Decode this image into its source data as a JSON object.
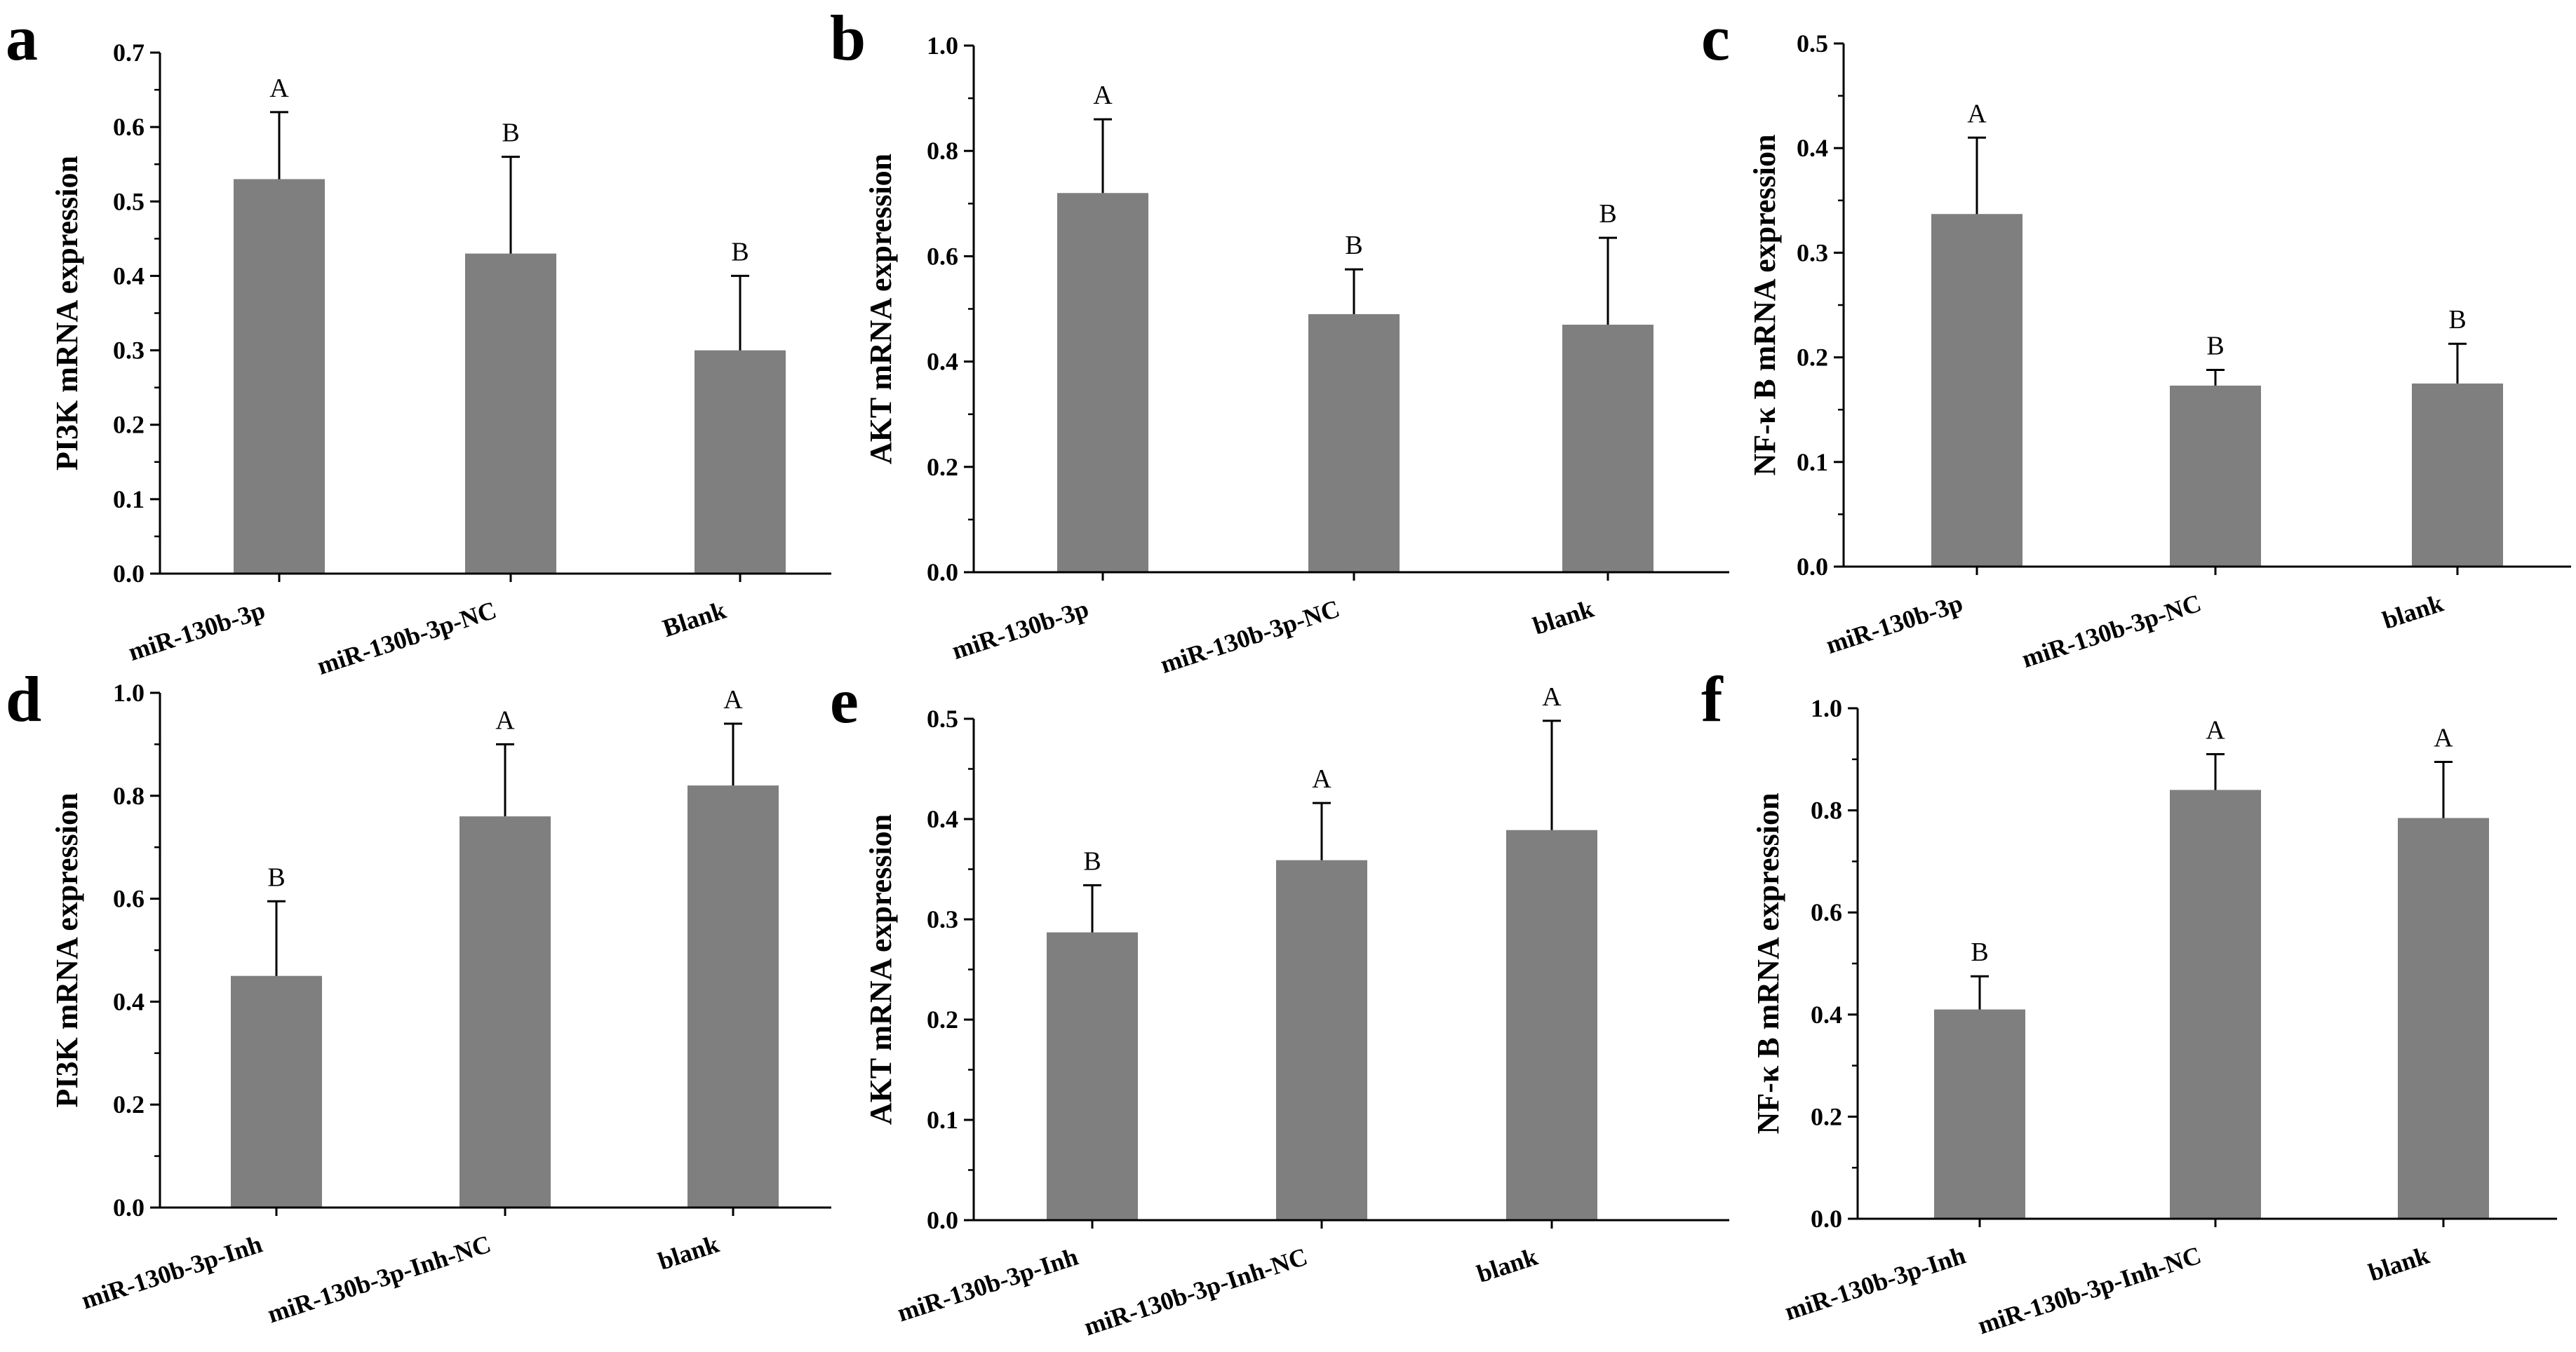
{
  "chart_data": [
    {
      "type": "bar",
      "panel": "a",
      "ylabel": "PI3K mRNA expression",
      "ylim": [
        0,
        0.7
      ],
      "yticks": [
        "0.0",
        "0.1",
        "0.2",
        "0.3",
        "0.4",
        "0.5",
        "0.6",
        "0.7"
      ],
      "categories": [
        "miR-130b-3p",
        "miR-130b-3p-NC",
        "Blank"
      ],
      "values": [
        0.53,
        0.43,
        0.3
      ],
      "errors": [
        0.09,
        0.13,
        0.1
      ],
      "labels": [
        "A",
        "B",
        "B"
      ]
    },
    {
      "type": "bar",
      "panel": "b",
      "ylabel": "AKT mRNA expression",
      "ylim": [
        0,
        1.0
      ],
      "yticks": [
        "0.0",
        "0.2",
        "0.4",
        "0.6",
        "0.8",
        "1.0"
      ],
      "categories": [
        "miR-130b-3p",
        "miR-130b-3p-NC",
        "blank"
      ],
      "values": [
        0.72,
        0.49,
        0.47
      ],
      "errors": [
        0.14,
        0.085,
        0.165
      ],
      "labels": [
        "A",
        "B",
        "B"
      ]
    },
    {
      "type": "bar",
      "panel": "c",
      "ylabel": "NF-κ B mRNA expression",
      "ylim": [
        0,
        0.5
      ],
      "yticks": [
        "0.0",
        "0.1",
        "0.2",
        "0.3",
        "0.4",
        "0.5"
      ],
      "categories": [
        "miR-130b-3p",
        "miR-130b-3p-NC",
        "blank"
      ],
      "values": [
        0.337,
        0.173,
        0.175
      ],
      "errors": [
        0.073,
        0.015,
        0.038
      ],
      "labels": [
        "A",
        "B",
        "B"
      ]
    },
    {
      "type": "bar",
      "panel": "d",
      "ylabel": "PI3K mRNA expression",
      "ylim": [
        0,
        1.0
      ],
      "yticks": [
        "0.0",
        "0.2",
        "0.4",
        "0.6",
        "0.8",
        "1.0"
      ],
      "categories": [
        "miR-130b-3p-Inh",
        "miR-130b-3p-Inh-NC",
        "blank"
      ],
      "values": [
        0.45,
        0.76,
        0.82
      ],
      "errors": [
        0.145,
        0.14,
        0.12
      ],
      "labels": [
        "B",
        "A",
        "A"
      ]
    },
    {
      "type": "bar",
      "panel": "e",
      "ylabel": "AKT mRNA expression",
      "ylim": [
        0,
        0.5
      ],
      "yticks": [
        "0.0",
        "0.1",
        "0.2",
        "0.3",
        "0.4",
        "0.5"
      ],
      "categories": [
        "miR-130b-3p-Inh",
        "miR-130b-3p-Inh-NC",
        "blank"
      ],
      "values": [
        0.287,
        0.359,
        0.389
      ],
      "errors": [
        0.047,
        0.057,
        0.109
      ],
      "labels": [
        "B",
        "A",
        "A"
      ]
    },
    {
      "type": "bar",
      "panel": "f",
      "ylabel": "NF-κ B mRNA expression",
      "ylim": [
        0,
        1.0
      ],
      "yticks": [
        "0.0",
        "0.2",
        "0.4",
        "0.6",
        "0.8",
        "1.0"
      ],
      "categories": [
        "miR-130b-3p-Inh",
        "miR-130b-3p-Inh-NC",
        "blank"
      ],
      "values": [
        0.41,
        0.84,
        0.785
      ],
      "errors": [
        0.065,
        0.07,
        0.11
      ],
      "labels": [
        "B",
        "A",
        "A"
      ]
    }
  ],
  "colors": {
    "bar": "#7f7f7f",
    "axis": "#000000"
  }
}
